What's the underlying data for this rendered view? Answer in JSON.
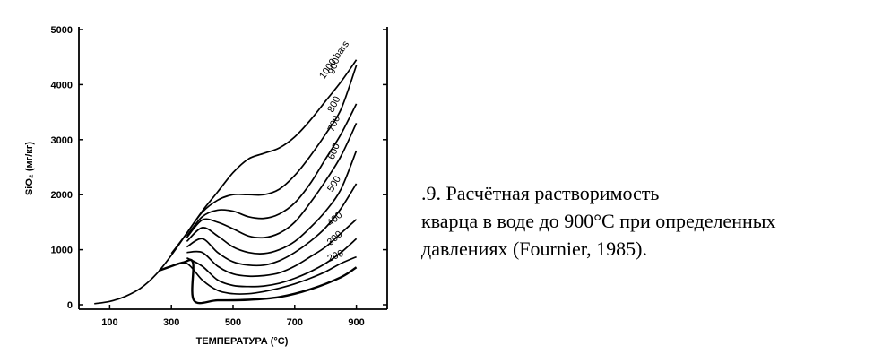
{
  "caption": {
    "line1": ".9. Расчётная растворимость",
    "line2": "кварца в воде до 900°C при определенных",
    "line3": "давлениях (Fournier, 1985)."
  },
  "chart_data": {
    "type": "line",
    "xlabel": "ТЕМПЕРАТУРА (°C)",
    "ylabel": "SiO₂ (мг/кг)",
    "xlim": [
      0,
      1000
    ],
    "ylim": [
      0,
      5000
    ],
    "x_ticks": [
      100,
      300,
      500,
      700,
      900
    ],
    "y_ticks": [
      0,
      1000,
      2000,
      3000,
      4000,
      5000
    ],
    "grid": false,
    "series": [
      {
        "name": "1000 bars",
        "points": [
          [
            50,
            20
          ],
          [
            100,
            60
          ],
          [
            150,
            150
          ],
          [
            200,
            300
          ],
          [
            250,
            550
          ],
          [
            300,
            900
          ],
          [
            350,
            1300
          ],
          [
            400,
            1700
          ],
          [
            450,
            2050
          ],
          [
            500,
            2400
          ],
          [
            550,
            2650
          ],
          [
            600,
            2750
          ],
          [
            650,
            2850
          ],
          [
            700,
            3050
          ],
          [
            750,
            3350
          ],
          [
            800,
            3700
          ],
          [
            850,
            4050
          ],
          [
            900,
            4450
          ]
        ]
      },
      {
        "name": "900",
        "points": [
          [
            300,
            930
          ],
          [
            350,
            1300
          ],
          [
            400,
            1680
          ],
          [
            450,
            1900
          ],
          [
            500,
            2000
          ],
          [
            550,
            2000
          ],
          [
            600,
            2000
          ],
          [
            650,
            2100
          ],
          [
            700,
            2350
          ],
          [
            750,
            2700
          ],
          [
            800,
            3100
          ],
          [
            850,
            3550
          ],
          [
            900,
            4350
          ]
        ]
      },
      {
        "name": "800",
        "points": [
          [
            350,
            1250
          ],
          [
            400,
            1600
          ],
          [
            450,
            1720
          ],
          [
            500,
            1700
          ],
          [
            550,
            1600
          ],
          [
            600,
            1570
          ],
          [
            650,
            1650
          ],
          [
            700,
            1850
          ],
          [
            750,
            2200
          ],
          [
            800,
            2650
          ],
          [
            850,
            3100
          ],
          [
            900,
            3650
          ]
        ]
      },
      {
        "name": "700",
        "points": [
          [
            350,
            1220
          ],
          [
            400,
            1540
          ],
          [
            450,
            1500
          ],
          [
            500,
            1380
          ],
          [
            550,
            1250
          ],
          [
            600,
            1220
          ],
          [
            650,
            1300
          ],
          [
            700,
            1500
          ],
          [
            750,
            1850
          ],
          [
            800,
            2250
          ],
          [
            850,
            2700
          ],
          [
            900,
            3300
          ]
        ]
      },
      {
        "name": "600",
        "points": [
          [
            350,
            1150
          ],
          [
            400,
            1400
          ],
          [
            450,
            1250
          ],
          [
            500,
            1050
          ],
          [
            550,
            950
          ],
          [
            600,
            930
          ],
          [
            650,
            1000
          ],
          [
            700,
            1150
          ],
          [
            750,
            1400
          ],
          [
            800,
            1700
          ],
          [
            850,
            2100
          ],
          [
            900,
            2800
          ]
        ]
      },
      {
        "name": "500",
        "points": [
          [
            350,
            1050
          ],
          [
            400,
            1200
          ],
          [
            450,
            950
          ],
          [
            500,
            780
          ],
          [
            550,
            720
          ],
          [
            600,
            720
          ],
          [
            650,
            800
          ],
          [
            700,
            950
          ],
          [
            750,
            1150
          ],
          [
            800,
            1400
          ],
          [
            850,
            1750
          ],
          [
            900,
            2200
          ]
        ]
      },
      {
        "name": "400",
        "points": [
          [
            350,
            950
          ],
          [
            400,
            950
          ],
          [
            450,
            700
          ],
          [
            500,
            560
          ],
          [
            550,
            520
          ],
          [
            600,
            530
          ],
          [
            650,
            580
          ],
          [
            700,
            700
          ],
          [
            750,
            870
          ],
          [
            800,
            1050
          ],
          [
            850,
            1300
          ],
          [
            900,
            1550
          ]
        ]
      },
      {
        "name": "300",
        "points": [
          [
            350,
            850
          ],
          [
            400,
            700
          ],
          [
            450,
            450
          ],
          [
            500,
            350
          ],
          [
            550,
            330
          ],
          [
            600,
            340
          ],
          [
            650,
            390
          ],
          [
            700,
            480
          ],
          [
            750,
            600
          ],
          [
            800,
            750
          ],
          [
            850,
            950
          ],
          [
            900,
            1200
          ]
        ]
      },
      {
        "name": "200",
        "points": [
          [
            300,
            700
          ],
          [
            350,
            750
          ],
          [
            400,
            450
          ],
          [
            450,
            260
          ],
          [
            500,
            200
          ],
          [
            550,
            200
          ],
          [
            600,
            240
          ],
          [
            650,
            300
          ],
          [
            700,
            380
          ],
          [
            750,
            480
          ],
          [
            800,
            600
          ],
          [
            850,
            750
          ],
          [
            900,
            870
          ]
        ]
      },
      {
        "name": "",
        "points": [
          [
            260,
            620
          ],
          [
            300,
            700
          ],
          [
            340,
            770
          ],
          [
            370,
            760
          ],
          [
            373,
            80
          ],
          [
            450,
            80
          ],
          [
            550,
            90
          ],
          [
            650,
            140
          ],
          [
            750,
            280
          ],
          [
            850,
            500
          ],
          [
            900,
            680
          ]
        ]
      }
    ]
  }
}
